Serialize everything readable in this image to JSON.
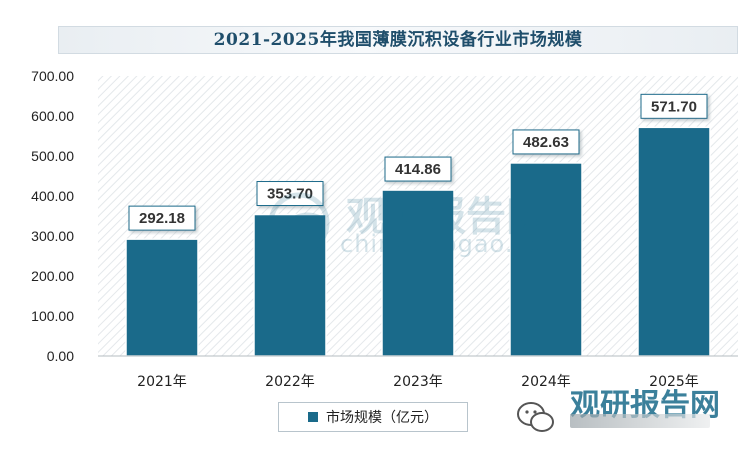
{
  "chart_data": {
    "type": "bar",
    "title": "2021-2025年我国薄膜沉积设备行业市场规模",
    "categories": [
      "2021年",
      "2022年",
      "2023年",
      "2024年",
      "2025年"
    ],
    "series": [
      {
        "name": "市场规模（亿元）",
        "values": [
          292.18,
          353.7,
          414.86,
          482.63,
          571.7
        ]
      }
    ],
    "data_labels": [
      "292.18",
      "353.70",
      "414.86",
      "482.63",
      "571.70"
    ],
    "ylim": [
      0,
      700
    ],
    "y_ticks": [
      "0.00",
      "100.00",
      "200.00",
      "300.00",
      "400.00",
      "500.00",
      "600.00",
      "700.00"
    ],
    "xlabel": "",
    "ylabel": "",
    "legend_position": "bottom",
    "grid": false,
    "bar_color": "#1a6a8a"
  },
  "watermark": {
    "brand": "观研报告网",
    "domain": "chinabaogao.com"
  }
}
